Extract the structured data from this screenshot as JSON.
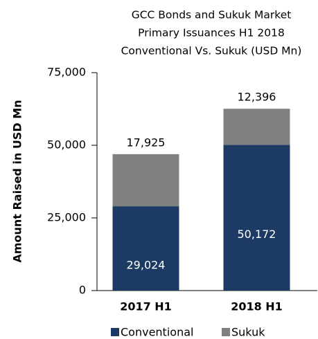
{
  "chart_data": {
    "type": "stacked_bar",
    "title": [
      "GCC Bonds and Sukuk Market",
      "Primary Issuances H1 2018",
      "Conventional Vs. Sukuk (USD Mn)"
    ],
    "y_label": "Amount Raised in USD Mn",
    "categories": [
      "2017 H1",
      "2018 H1"
    ],
    "series": [
      {
        "name": "Conventional",
        "color": "#1c3a63",
        "values": [
          29024,
          50172
        ],
        "value_labels": [
          "29,024",
          "50,172"
        ]
      },
      {
        "name": "Sukuk",
        "color": "#808080",
        "values": [
          17925,
          12396
        ],
        "value_labels": [
          "17,925",
          "12,396"
        ]
      }
    ],
    "ylim": [
      0,
      75000
    ],
    "yticks": [
      0,
      {
        "value": 25000,
        "label": "25,000"
      },
      {
        "value": 50000,
        "label": "50,000"
      },
      {
        "value": 75000,
        "label": "75,000"
      }
    ],
    "grid": false,
    "legend": "bottom"
  }
}
